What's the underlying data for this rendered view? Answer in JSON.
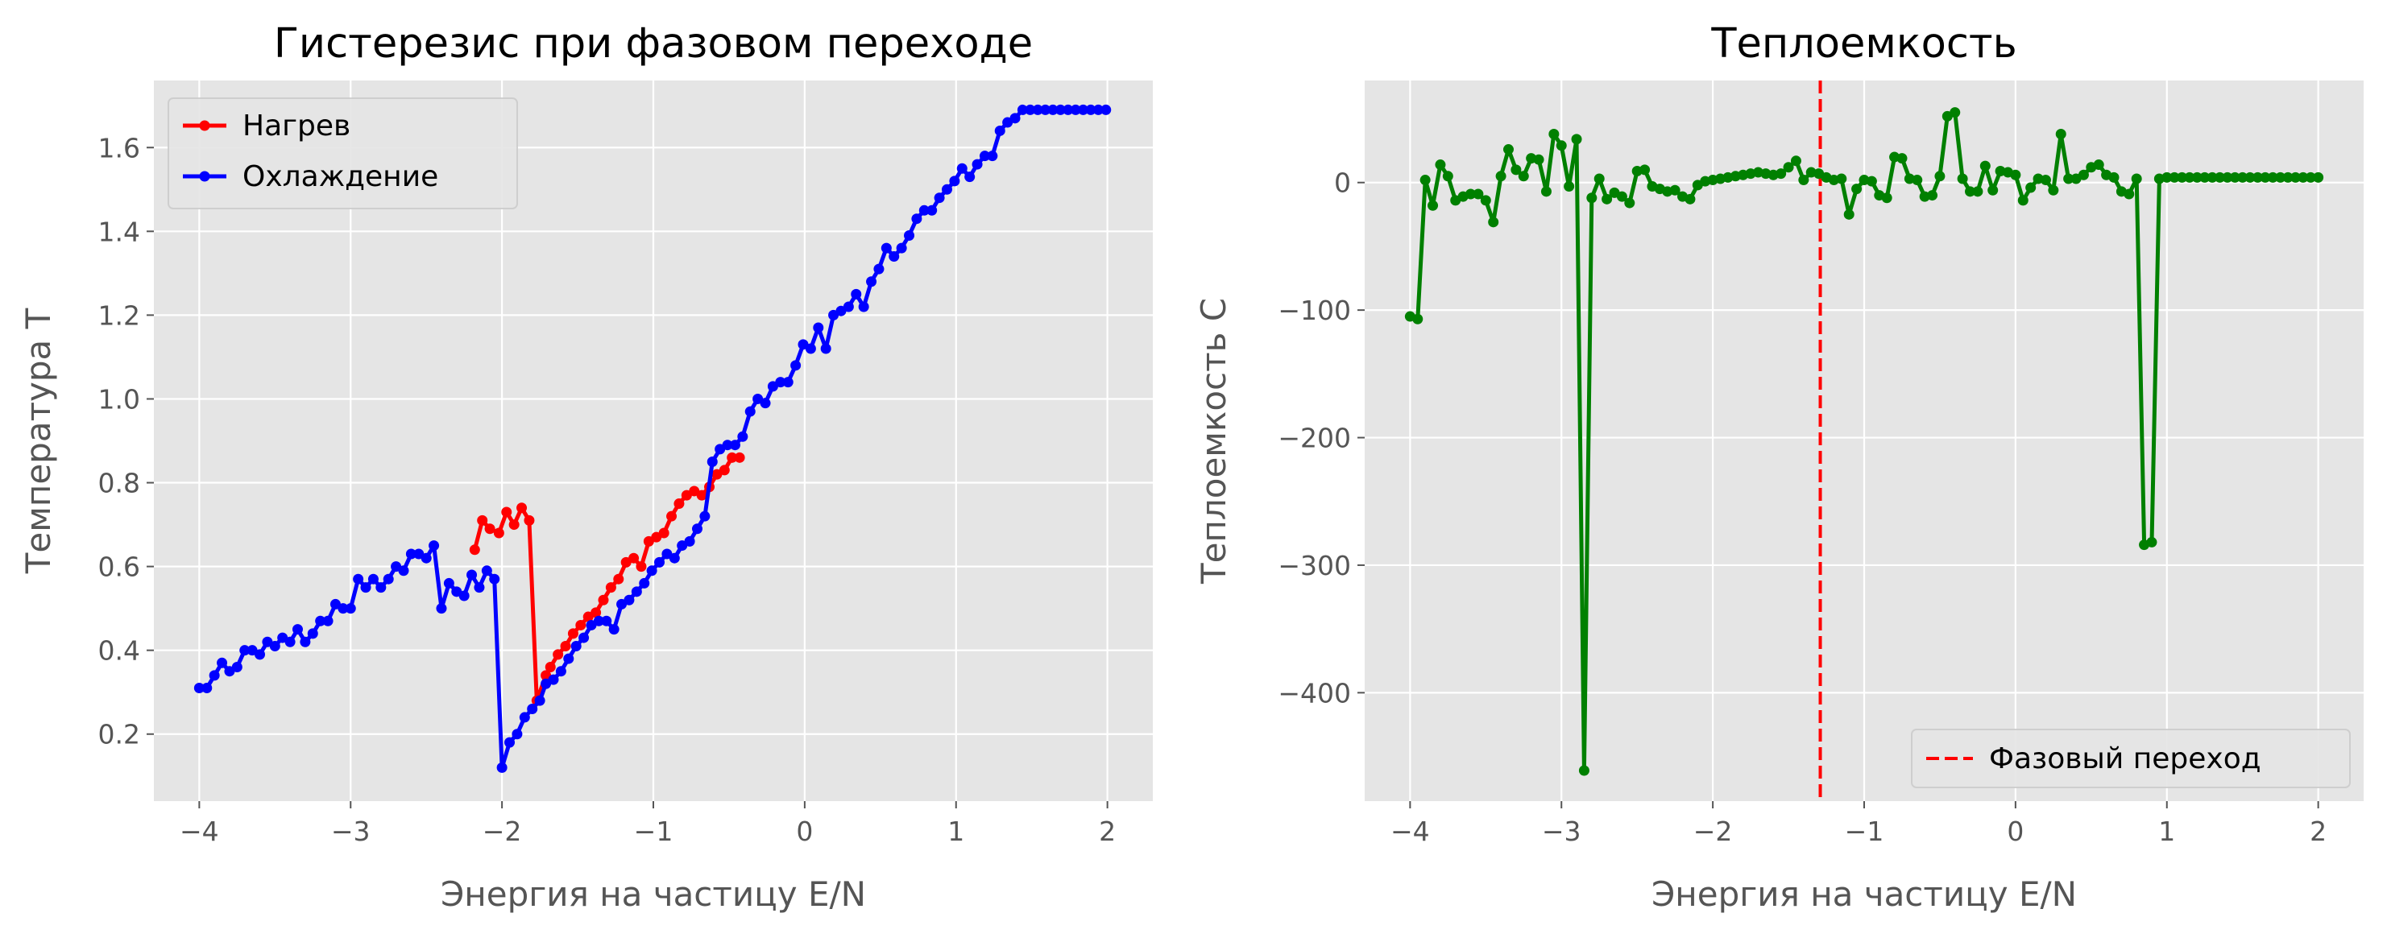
{
  "chart_data": [
    {
      "type": "line",
      "title": "Гистерезис при фазовом переходе",
      "xlabel": "Энергия на частицу E/N",
      "ylabel": "Температура T",
      "xlim": [
        -4.3,
        2.3
      ],
      "ylim": [
        0.04,
        1.76
      ],
      "xticks": [
        -4,
        -3,
        -2,
        -1,
        0,
        1,
        2
      ],
      "xtick_labels": [
        "−4",
        "−3",
        "−2",
        "−1",
        "0",
        "1",
        "2"
      ],
      "yticks": [
        0.2,
        0.4,
        0.6,
        0.8,
        1.0,
        1.2,
        1.4,
        1.6
      ],
      "ytick_labels": [
        "0.2",
        "0.4",
        "0.6",
        "0.8",
        "1.0",
        "1.2",
        "1.4",
        "1.6"
      ],
      "grid": true,
      "legend_position": "top-left",
      "series": [
        {
          "name": "Нагрев",
          "color": "#ff0000",
          "x": [
            -2.18,
            -2.13,
            -2.08,
            -2.02,
            -1.97,
            -1.92,
            -1.87,
            -1.82,
            -1.77,
            -1.71,
            -1.68,
            -1.63,
            -1.58,
            -1.53,
            -1.48,
            -1.43,
            -1.38,
            -1.33,
            -1.28,
            -1.23,
            -1.18,
            -1.13,
            -1.08,
            -1.03,
            -0.98,
            -0.93,
            -0.88,
            -0.83,
            -0.78,
            -0.73,
            -0.68,
            -0.63,
            -0.58,
            -0.53,
            -0.48,
            -0.43
          ],
          "y": [
            0.64,
            0.71,
            0.69,
            0.68,
            0.73,
            0.7,
            0.74,
            0.71,
            0.28,
            0.34,
            0.36,
            0.39,
            0.41,
            0.44,
            0.46,
            0.48,
            0.49,
            0.52,
            0.55,
            0.57,
            0.61,
            0.62,
            0.6,
            0.66,
            0.67,
            0.68,
            0.72,
            0.75,
            0.77,
            0.78,
            0.77,
            0.79,
            0.82,
            0.83,
            0.86,
            0.86
          ]
        },
        {
          "name": "Охлаждение",
          "color": "#0000ff",
          "x": [
            -4.0,
            -3.95,
            -3.9,
            -3.85,
            -3.8,
            -3.75,
            -3.7,
            -3.65,
            -3.6,
            -3.55,
            -3.5,
            -3.45,
            -3.4,
            -3.35,
            -3.3,
            -3.25,
            -3.2,
            -3.15,
            -3.1,
            -3.05,
            -3.0,
            -2.95,
            -2.9,
            -2.85,
            -2.8,
            -2.75,
            -2.7,
            -2.65,
            -2.6,
            -2.55,
            -2.5,
            -2.45,
            -2.4,
            -2.35,
            -2.3,
            -2.25,
            -2.2,
            -2.15,
            -2.1,
            -2.05,
            -2.0,
            -1.95,
            -1.9,
            -1.85,
            -1.8,
            -1.75,
            -1.71,
            -1.66,
            -1.61,
            -1.56,
            -1.51,
            -1.46,
            -1.41,
            -1.36,
            -1.31,
            -1.26,
            -1.21,
            -1.16,
            -1.11,
            -1.06,
            -1.01,
            -0.96,
            -0.91,
            -0.86,
            -0.81,
            -0.76,
            -0.71,
            -0.66,
            -0.61,
            -0.56,
            -0.51,
            -0.46,
            -0.41,
            -0.36,
            -0.31,
            -0.26,
            -0.21,
            -0.16,
            -0.11,
            -0.06,
            -0.01,
            0.04,
            0.09,
            0.14,
            0.19,
            0.24,
            0.29,
            0.34,
            0.39,
            0.44,
            0.49,
            0.54,
            0.59,
            0.64,
            0.69,
            0.74,
            0.79,
            0.84,
            0.89,
            0.94,
            0.99,
            1.04,
            1.09,
            1.14,
            1.19,
            1.24,
            1.29,
            1.34,
            1.39,
            1.44,
            1.49,
            1.54,
            1.59,
            1.64,
            1.69,
            1.74,
            1.79,
            1.84,
            1.89,
            1.94,
            1.99
          ],
          "y": [
            0.31,
            0.31,
            0.34,
            0.37,
            0.35,
            0.36,
            0.4,
            0.4,
            0.39,
            0.42,
            0.41,
            0.43,
            0.42,
            0.45,
            0.42,
            0.44,
            0.47,
            0.47,
            0.51,
            0.5,
            0.5,
            0.57,
            0.55,
            0.57,
            0.55,
            0.57,
            0.6,
            0.59,
            0.63,
            0.63,
            0.62,
            0.65,
            0.5,
            0.56,
            0.54,
            0.53,
            0.58,
            0.55,
            0.59,
            0.57,
            0.12,
            0.18,
            0.2,
            0.24,
            0.26,
            0.28,
            0.32,
            0.33,
            0.35,
            0.38,
            0.41,
            0.43,
            0.46,
            0.47,
            0.47,
            0.45,
            0.51,
            0.52,
            0.54,
            0.56,
            0.59,
            0.61,
            0.63,
            0.62,
            0.65,
            0.66,
            0.69,
            0.72,
            0.85,
            0.88,
            0.89,
            0.89,
            0.91,
            0.97,
            1.0,
            0.99,
            1.03,
            1.04,
            1.04,
            1.08,
            1.13,
            1.12,
            1.17,
            1.12,
            1.2,
            1.21,
            1.22,
            1.25,
            1.22,
            1.28,
            1.31,
            1.36,
            1.34,
            1.36,
            1.39,
            1.43,
            1.45,
            1.45,
            1.48,
            1.5,
            1.52,
            1.55,
            1.53,
            1.56,
            1.58,
            1.58,
            1.64,
            1.66,
            1.67,
            1.69,
            1.69,
            1.69,
            1.69,
            1.69,
            1.69,
            1.69,
            1.69,
            1.69,
            1.69,
            1.69,
            1.69
          ]
        }
      ]
    },
    {
      "type": "line",
      "title": "Теплоемкость",
      "xlabel": "Энергия на частицу E/N",
      "ylabel": "Теплоемкость C",
      "xlim": [
        -4.3,
        2.3
      ],
      "ylim": [
        -485,
        80
      ],
      "xticks": [
        -4,
        -3,
        -2,
        -1,
        0,
        1,
        2
      ],
      "xtick_labels": [
        "−4",
        "−3",
        "−2",
        "−1",
        "0",
        "1",
        "2"
      ],
      "yticks": [
        -400,
        -300,
        -200,
        -100,
        0
      ],
      "ytick_labels": [
        "−400",
        "−300",
        "−200",
        "−100",
        "0"
      ],
      "grid": true,
      "legend_position": "bottom-right",
      "series": [
        {
          "name": "",
          "color": "#008000",
          "x": [
            -4.0,
            -3.95,
            -3.9,
            -3.85,
            -3.8,
            -3.75,
            -3.7,
            -3.65,
            -3.6,
            -3.55,
            -3.5,
            -3.45,
            -3.4,
            -3.35,
            -3.3,
            -3.25,
            -3.2,
            -3.15,
            -3.1,
            -3.05,
            -3.0,
            -2.95,
            -2.9,
            -2.85,
            -2.8,
            -2.75,
            -2.7,
            -2.65,
            -2.6,
            -2.55,
            -2.5,
            -2.45,
            -2.4,
            -2.35,
            -2.3,
            -2.25,
            -2.2,
            -2.15,
            -2.1,
            -2.05,
            -2.0,
            -1.95,
            -1.9,
            -1.85,
            -1.8,
            -1.75,
            -1.7,
            -1.65,
            -1.6,
            -1.55,
            -1.5,
            -1.45,
            -1.4,
            -1.35,
            -1.3,
            -1.25,
            -1.2,
            -1.15,
            -1.1,
            -1.05,
            -1.0,
            -0.95,
            -0.9,
            -0.85,
            -0.8,
            -0.75,
            -0.7,
            -0.65,
            -0.6,
            -0.55,
            -0.5,
            -0.45,
            -0.4,
            -0.35,
            -0.3,
            -0.25,
            -0.2,
            -0.15,
            -0.1,
            -0.05,
            0.0,
            0.05,
            0.1,
            0.15,
            0.2,
            0.25,
            0.3,
            0.35,
            0.4,
            0.45,
            0.5,
            0.55,
            0.6,
            0.65,
            0.7,
            0.75,
            0.8,
            0.85,
            0.9,
            0.95,
            1.0,
            1.05,
            1.1,
            1.15,
            1.2,
            1.25,
            1.3,
            1.35,
            1.4,
            1.45,
            1.5,
            1.55,
            1.6,
            1.65,
            1.7,
            1.75,
            1.8,
            1.85,
            1.9,
            1.95,
            2.0
          ],
          "y": [
            -105,
            -107,
            2,
            -18,
            14,
            5,
            -14,
            -11,
            -9,
            -9,
            -14,
            -31,
            5,
            26,
            10,
            5,
            19,
            18,
            -7,
            38,
            29,
            -3,
            34,
            -461,
            -12,
            3,
            -13,
            -8,
            -11,
            -16,
            9,
            10,
            -3,
            -5,
            -7,
            -6,
            -11,
            -13,
            -2,
            1,
            2,
            3,
            4,
            5,
            6,
            7,
            8,
            7,
            6,
            7,
            12,
            17,
            2,
            8,
            7,
            4,
            2,
            3,
            -25,
            -5,
            2,
            1,
            -10,
            -12,
            20,
            19,
            3,
            2,
            -11,
            -10,
            5,
            52,
            55,
            3,
            -7,
            -7,
            13,
            -6,
            9,
            8,
            6,
            -14,
            -4,
            3,
            2,
            -6,
            38,
            3,
            3,
            6,
            12,
            14,
            6,
            4,
            -7,
            -9,
            3,
            -284,
            -282,
            3,
            4,
            4,
            4,
            4,
            4,
            4,
            4,
            4,
            4,
            4,
            4,
            4,
            4,
            4,
            4,
            4,
            4,
            4,
            4,
            4,
            4
          ],
          "markers": true
        }
      ],
      "reference_lines": [
        {
          "name": "Фазовый переход",
          "x": -1.29,
          "color": "#ff0000",
          "style": "dashed"
        }
      ]
    }
  ]
}
